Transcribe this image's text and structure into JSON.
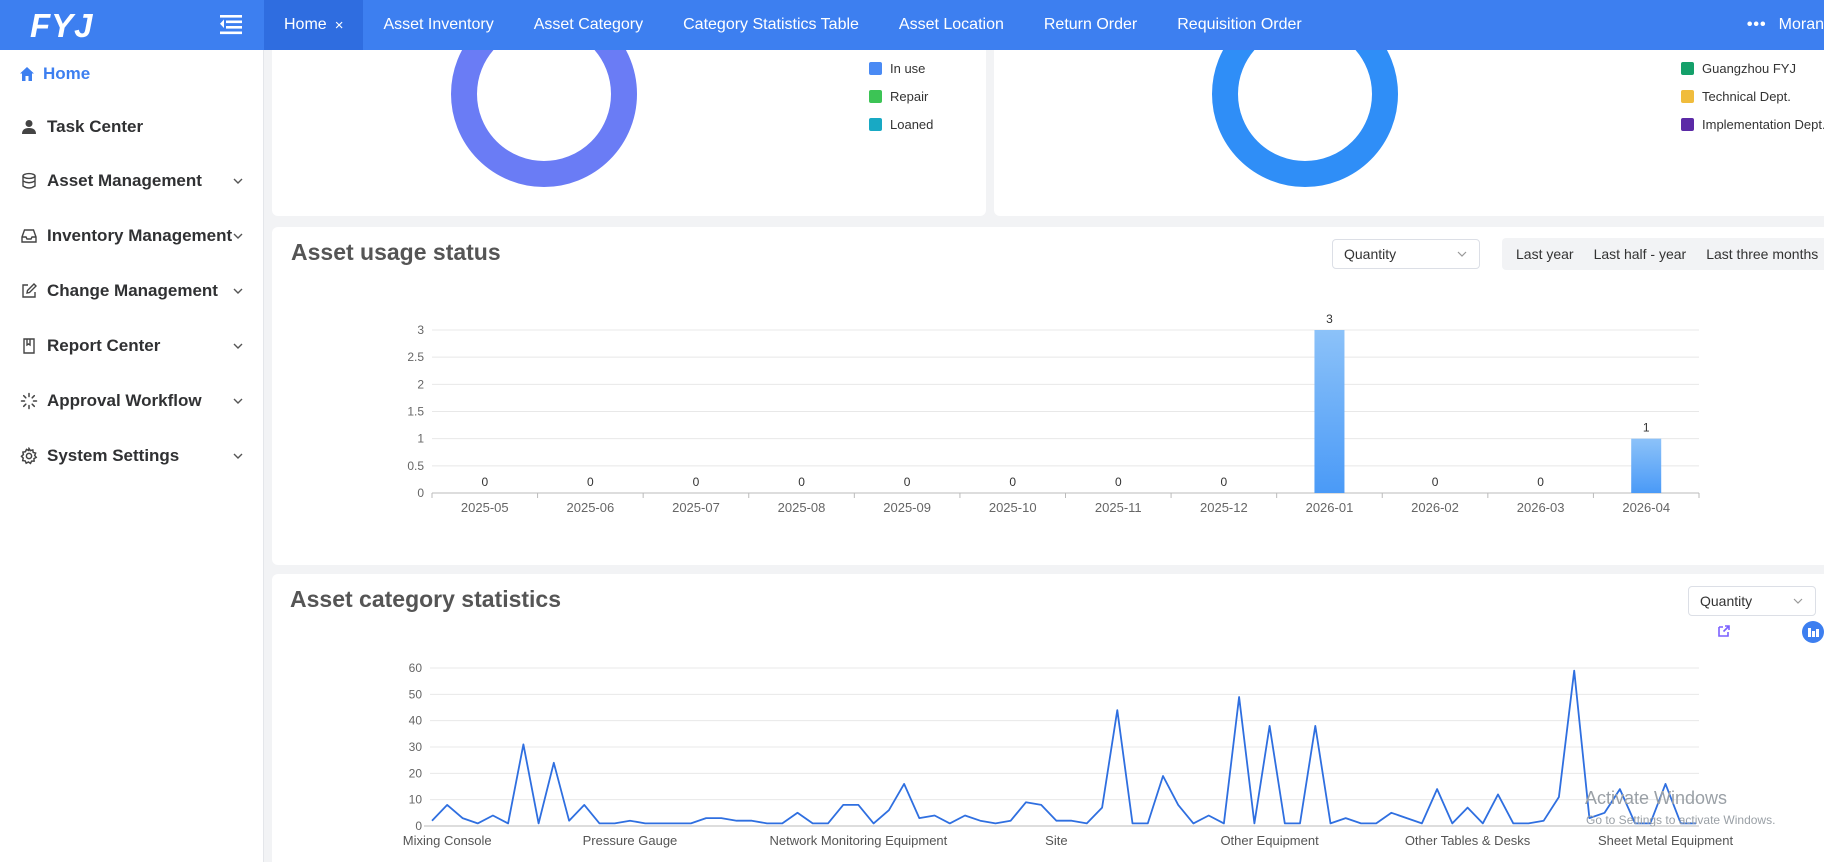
{
  "header": {
    "logo_text": "FYJ",
    "tabs": [
      {
        "label": "Home",
        "active": true,
        "closable": true
      },
      {
        "label": "Asset Inventory"
      },
      {
        "label": "Asset Category"
      },
      {
        "label": "Category Statistics Table"
      },
      {
        "label": "Asset Location"
      },
      {
        "label": "Return Order"
      },
      {
        "label": "Requisition Order"
      }
    ],
    "close_glyph": "×",
    "more_glyph": "•••",
    "user_name": "Moran",
    "bar_color": "#3d7ff0"
  },
  "sidebar": {
    "items": [
      {
        "label": "Home",
        "icon": "home-icon",
        "active": true
      },
      {
        "label": "Task Center",
        "icon": "user-icon"
      },
      {
        "label": "Asset Management",
        "icon": "database-icon",
        "expandable": true
      },
      {
        "label": "Inventory Management",
        "icon": "inbox-icon",
        "expandable": true
      },
      {
        "label": "Change Management",
        "icon": "edit-icon",
        "expandable": true
      },
      {
        "label": "Report Center",
        "icon": "book-icon",
        "expandable": true
      },
      {
        "label": "Approval Workflow",
        "icon": "loading-icon",
        "expandable": true
      },
      {
        "label": "System Settings",
        "icon": "gear-icon",
        "expandable": true
      }
    ]
  },
  "status_donut": {
    "color": "#6a7cf5",
    "legend": [
      {
        "label": "In use",
        "color": "#4a8af4"
      },
      {
        "label": "Repair",
        "color": "#3cc455"
      },
      {
        "label": "Loaned",
        "color": "#18a9c4"
      }
    ]
  },
  "department_donut": {
    "color": "#2f8ef7",
    "legend": [
      {
        "label": "Guangzhou FYJ",
        "color": "#14a06a"
      },
      {
        "label": "Technical Dept.",
        "color": "#f0bc3c"
      },
      {
        "label": "Implementation Dept.",
        "color": "#5b2aa6"
      }
    ]
  },
  "usage": {
    "title": "Asset usage status",
    "select_value": "Quantity",
    "ranges": [
      "Last year",
      "Last half - year",
      "Last three months"
    ]
  },
  "category": {
    "title": "Asset category statistics",
    "select_value": "Quantity"
  },
  "watermark": {
    "title": "Activate Windows",
    "subtitle": "Go to Settings to activate Windows."
  },
  "chart_data": [
    {
      "type": "bar",
      "title": "Asset usage status",
      "categories": [
        "2025-05",
        "2025-06",
        "2025-07",
        "2025-08",
        "2025-09",
        "2025-10",
        "2025-11",
        "2025-12",
        "2026-01",
        "2026-02",
        "2026-03",
        "2026-04"
      ],
      "values": [
        0,
        0,
        0,
        0,
        0,
        0,
        0,
        0,
        3,
        0,
        0,
        1
      ],
      "ylim": [
        0,
        3
      ],
      "yticks": [
        "0",
        "0.5",
        "1",
        "1.5",
        "2",
        "2.5",
        "3"
      ],
      "grid": true,
      "data_labels": true,
      "bar_color": "#4a9af7"
    },
    {
      "type": "line",
      "title": "Asset category statistics",
      "x_labels": [
        "Mixing Console",
        "Pressure Gauge",
        "Network Monitoring Equipment",
        "Site",
        "Other Equipment",
        "Other Tables & Desks",
        "Sheet Metal Equipment"
      ],
      "values": [
        2,
        8,
        3,
        1,
        4,
        1,
        31,
        1,
        24,
        2,
        8,
        1,
        1,
        2,
        1,
        1,
        1,
        1,
        3,
        3,
        2,
        2,
        1,
        1,
        5,
        1,
        1,
        8,
        8,
        1,
        6,
        16,
        3,
        4,
        1,
        4,
        2,
        1,
        2,
        9,
        8,
        2,
        2,
        1,
        7,
        44,
        1,
        1,
        19,
        8,
        1,
        4,
        1,
        49,
        1,
        38,
        1,
        1,
        38,
        1,
        3,
        1,
        1,
        5,
        3,
        1,
        14,
        1,
        7,
        1,
        12,
        1,
        1,
        2,
        11,
        59,
        3,
        5,
        14,
        1,
        1,
        16,
        1,
        1
      ],
      "ylim": [
        0,
        60
      ],
      "yticks": [
        "0",
        "10",
        "20",
        "30",
        "40",
        "50",
        "60"
      ],
      "grid": true,
      "line_color": "#2f6fe0"
    }
  ]
}
